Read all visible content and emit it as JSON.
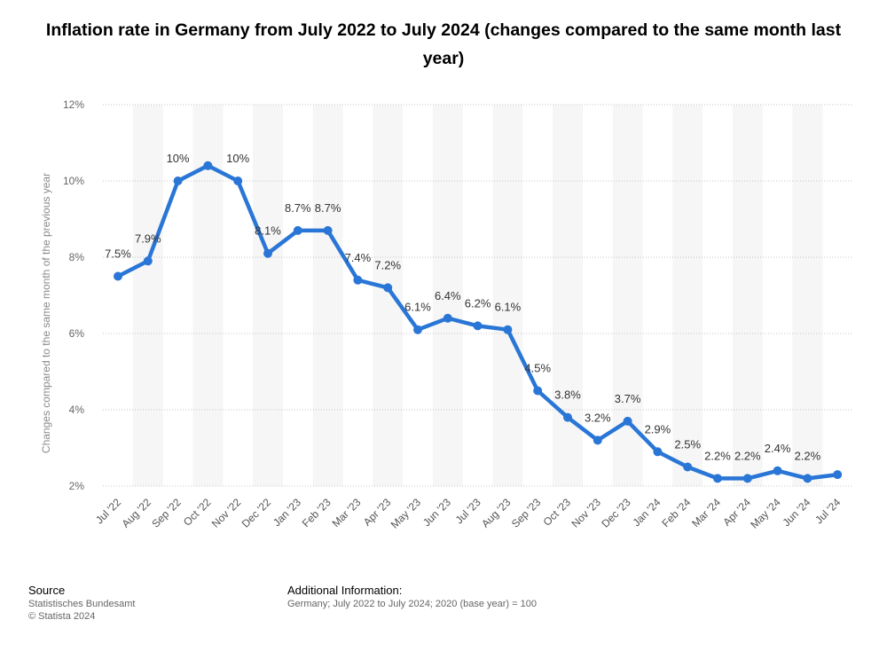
{
  "title": "Inflation rate in Germany from July 2022 to July 2024 (changes compared to the same month last year)",
  "colors": {
    "line": "#2a76d6",
    "band": "#f6f6f6",
    "grid": "#c4c4c4"
  },
  "footer": {
    "source_heading": "Source",
    "source_line1": "Statistisches Bundesamt",
    "source_line2": "© Statista 2024",
    "info_heading": "Additional Information:",
    "info_text": "Germany; July 2022 to July 2024; 2020 (base year) = 100"
  },
  "chart_data": {
    "type": "line",
    "title": "Inflation rate in Germany from July 2022 to July 2024 (changes compared to the same month last year)",
    "ylabel": "Changes compared to the same month of the previous year",
    "xlabel": "",
    "ylim": [
      2,
      12
    ],
    "yticks": [
      2,
      4,
      6,
      8,
      10,
      12
    ],
    "ytick_labels": [
      "2%",
      "4%",
      "6%",
      "8%",
      "10%",
      "12%"
    ],
    "grid": true,
    "categories": [
      "Jul '22",
      "Aug '22",
      "Sep '22",
      "Oct '22",
      "Nov '22",
      "Dec '22",
      "Jan '23",
      "Feb '23",
      "Mar '23",
      "Apr '23",
      "May '23",
      "Jun '23",
      "Jul '23",
      "Aug '23",
      "Sep '23",
      "Oct '23",
      "Nov '23",
      "Dec '23",
      "Jan '24",
      "Feb '24",
      "Mar '24",
      "Apr '24",
      "May '24",
      "Jun '24",
      "Jul '24"
    ],
    "values": [
      7.5,
      7.9,
      10,
      10.4,
      10,
      8.1,
      8.7,
      8.7,
      7.4,
      7.2,
      6.1,
      6.4,
      6.2,
      6.1,
      4.5,
      3.8,
      3.2,
      3.7,
      2.9,
      2.5,
      2.2,
      2.2,
      2.4,
      2.2,
      2.3
    ],
    "data_labels": [
      "7.5%",
      "7.9%",
      "10%",
      "",
      "10%",
      "8.1%",
      "8.7%",
      "8.7%",
      "7.4%",
      "7.2%",
      "6.1%",
      "6.4%",
      "6.2%",
      "6.1%",
      "4.5%",
      "3.8%",
      "3.2%",
      "3.7%",
      "2.9%",
      "2.5%",
      "2.2%",
      "2.2%",
      "2.4%",
      "2.2%",
      ""
    ]
  }
}
